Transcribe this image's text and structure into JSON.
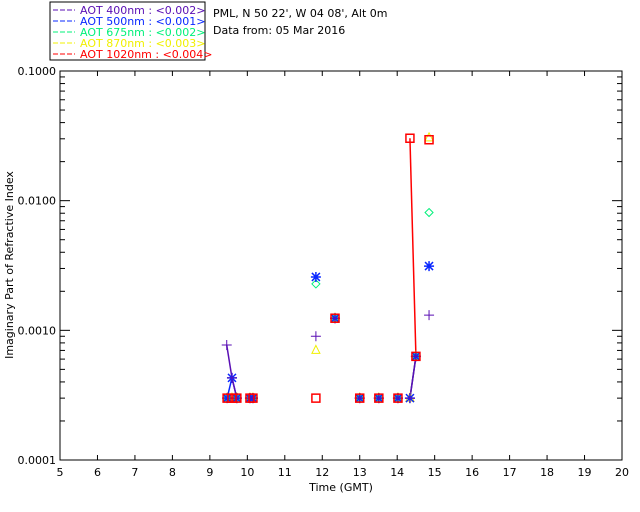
{
  "chart_data": {
    "type": "scatter",
    "header": {
      "site": "PML, N 50 22', W 04 08', Alt 0m",
      "date": "Data from: 05 Mar 2016"
    },
    "xlabel": "Time (GMT)",
    "ylabel": "Imaginary Part of Refractive Index",
    "xlim": [
      5,
      20
    ],
    "ylim": [
      0.0001,
      0.1
    ],
    "yscale": "log",
    "xticks": [
      "5",
      "6",
      "7",
      "8",
      "9",
      "10",
      "11",
      "12",
      "13",
      "14",
      "15",
      "16",
      "17",
      "18",
      "19",
      "20"
    ],
    "yticks": [
      "0.0001",
      "0.0010",
      "0.0100",
      "0.1000"
    ],
    "legend_position": "top-left-outside",
    "series": [
      {
        "name": "AOT  400nm : <0.002>",
        "color": "#5a0fb4",
        "marker": "plus",
        "points": [
          [
            9.45,
            0.00077
          ],
          [
            9.59,
            0.00043
          ],
          [
            9.72,
            0.0003
          ],
          [
            10.07,
            0.0003
          ],
          [
            10.15,
            0.0003
          ],
          [
            11.83,
            0.0009
          ],
          [
            12.34,
            0.00124
          ],
          [
            13.0,
            0.0003
          ],
          [
            13.51,
            0.0003
          ],
          [
            14.02,
            0.0003
          ],
          [
            14.34,
            0.0003
          ],
          [
            14.5,
            0.00063
          ],
          [
            14.85,
            0.00131
          ]
        ]
      },
      {
        "name": "AOT  500nm : <0.001>",
        "color": "#0a28ff",
        "marker": "star",
        "points": [
          [
            9.46,
            0.0003
          ],
          [
            9.59,
            0.00043
          ],
          [
            9.72,
            0.0003
          ],
          [
            10.07,
            0.0003
          ],
          [
            10.15,
            0.0003
          ],
          [
            11.83,
            0.00258
          ],
          [
            12.34,
            0.00124
          ],
          [
            13.0,
            0.0003
          ],
          [
            13.51,
            0.0003
          ],
          [
            14.02,
            0.0003
          ],
          [
            14.34,
            0.0003
          ],
          [
            14.5,
            0.00063
          ],
          [
            14.85,
            0.00313
          ]
        ]
      },
      {
        "name": "AOT  675nm : <0.002>",
        "color": "#00f07a",
        "marker": "diamond",
        "points": [
          [
            9.46,
            0.0003
          ],
          [
            9.59,
            0.0003
          ],
          [
            9.72,
            0.0003
          ],
          [
            10.07,
            0.0003
          ],
          [
            10.15,
            0.0003
          ],
          [
            11.83,
            0.00228
          ],
          [
            12.34,
            0.00124
          ],
          [
            13.0,
            0.0003
          ],
          [
            13.51,
            0.0003
          ],
          [
            14.02,
            0.0003
          ],
          [
            14.5,
            0.00063
          ],
          [
            14.85,
            0.0081
          ]
        ]
      },
      {
        "name": "AOT  870nm : <0.003>",
        "color": "#f0f000",
        "marker": "triangle",
        "points": [
          [
            9.46,
            0.0003
          ],
          [
            9.59,
            0.0003
          ],
          [
            9.72,
            0.0003
          ],
          [
            10.07,
            0.0003
          ],
          [
            10.15,
            0.0003
          ],
          [
            11.83,
            0.0007
          ],
          [
            12.34,
            0.00124
          ],
          [
            13.0,
            0.0003
          ],
          [
            13.51,
            0.0003
          ],
          [
            14.02,
            0.0003
          ],
          [
            14.34,
            0.0003
          ],
          [
            14.5,
            0.00063
          ],
          [
            14.85,
            0.0305
          ]
        ]
      },
      {
        "name": "AOT 1020nm : <0.004>",
        "color": "#ff0000",
        "marker": "square",
        "points": [
          [
            9.46,
            0.0003
          ],
          [
            9.59,
            0.0003
          ],
          [
            9.72,
            0.0003
          ],
          [
            10.07,
            0.0003
          ],
          [
            10.15,
            0.0003
          ],
          [
            11.83,
            0.0003
          ],
          [
            12.34,
            0.00124
          ],
          [
            13.0,
            0.0003
          ],
          [
            13.51,
            0.0003
          ],
          [
            14.02,
            0.0003
          ],
          [
            14.34,
            0.0303
          ],
          [
            14.5,
            0.00063
          ],
          [
            14.85,
            0.0295
          ]
        ]
      }
    ]
  }
}
